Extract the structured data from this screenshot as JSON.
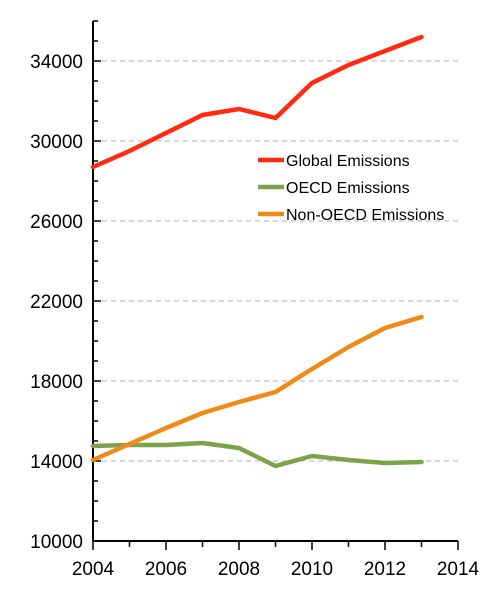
{
  "chart_data": {
    "type": "line",
    "title": "",
    "xlabel": "",
    "ylabel": "",
    "x": [
      2004,
      2005,
      2006,
      2007,
      2008,
      2009,
      2010,
      2011,
      2012,
      2013
    ],
    "xlim": [
      2004,
      2014
    ],
    "ylim": [
      10000,
      36000
    ],
    "x_ticks": [
      "2004",
      "2006",
      "2008",
      "2010",
      "2012",
      "2014"
    ],
    "y_ticks": [
      "10000",
      "14000",
      "18000",
      "22000",
      "26000",
      "30000",
      "34000"
    ],
    "grid": "horizontal dashed",
    "legend_position": "center-right",
    "series": [
      {
        "name": "Global Emissions",
        "color": "#ff2a10",
        "values": [
          28700,
          29500,
          30400,
          31300,
          31600,
          31150,
          32900,
          33800,
          34500,
          35200
        ]
      },
      {
        "name": "OECD Emissions",
        "color": "#7da34a",
        "values": [
          14750,
          14800,
          14800,
          14900,
          14650,
          13750,
          14250,
          14050,
          13900,
          13950
        ]
      },
      {
        "name": "Non-OECD Emissions",
        "color": "#f08a16",
        "values": [
          14050,
          14850,
          15650,
          16400,
          16950,
          17450,
          18600,
          19700,
          20650,
          21200
        ]
      }
    ]
  }
}
